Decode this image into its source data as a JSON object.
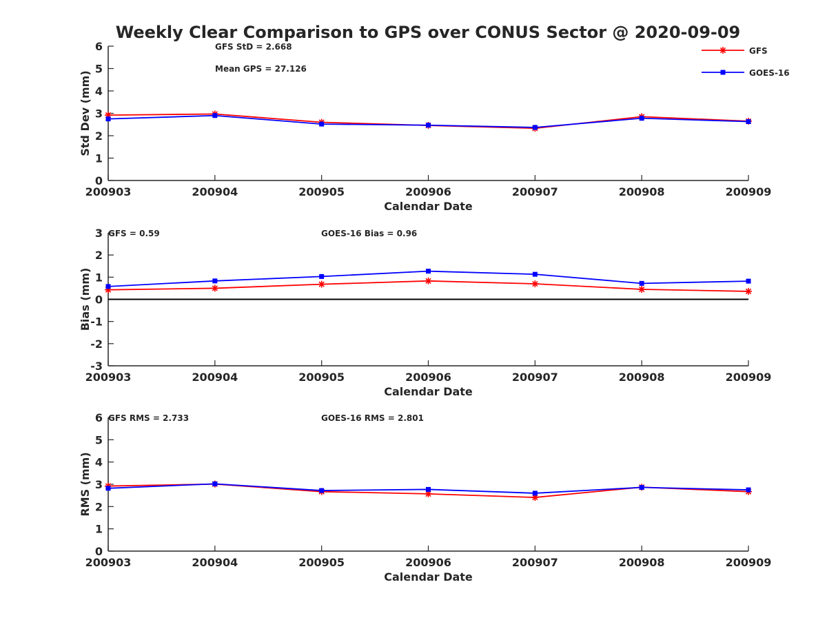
{
  "title": "Weekly Clear Comparison to GPS over CONUS Sector @ 2020-09-09",
  "legend": {
    "placement": "top-right",
    "entries": [
      {
        "name": "GFS",
        "color": "#ff0000",
        "marker": "asterisk"
      },
      {
        "name": "GOES-16",
        "color": "#0000ff",
        "marker": "square"
      }
    ]
  },
  "chart_data": [
    {
      "type": "line",
      "xlabel": "Calendar Date",
      "ylabel": "Std Dev (mm)",
      "categories": [
        "200903",
        "200904",
        "200905",
        "200906",
        "200907",
        "200908",
        "200909"
      ],
      "ylim": [
        0,
        6
      ],
      "yticks": [
        "0",
        "1",
        "2",
        "3",
        "4",
        "5",
        "6"
      ],
      "annotations": [
        "GFS StD = 2.668",
        "Mean GPS = 27.126"
      ],
      "series": [
        {
          "name": "GFS",
          "values": [
            2.92,
            2.97,
            2.6,
            2.46,
            2.33,
            2.85,
            2.65
          ]
        },
        {
          "name": "GOES-16",
          "values": [
            2.75,
            2.9,
            2.52,
            2.47,
            2.37,
            2.78,
            2.63
          ]
        }
      ]
    },
    {
      "type": "line",
      "xlabel": "Calendar Date",
      "ylabel": "Bias (mm)",
      "categories": [
        "200903",
        "200904",
        "200905",
        "200906",
        "200907",
        "200908",
        "200909"
      ],
      "ylim": [
        -3,
        3
      ],
      "yticks": [
        "-3",
        "-2",
        "-1",
        "0",
        "1",
        "2",
        "3"
      ],
      "zero_line": true,
      "annotations": [
        "GFS = 0.59",
        "GOES-16 Bias  = 0.96"
      ],
      "series": [
        {
          "name": "GFS",
          "values": [
            0.43,
            0.5,
            0.68,
            0.83,
            0.7,
            0.45,
            0.36
          ]
        },
        {
          "name": "GOES-16",
          "values": [
            0.58,
            0.83,
            1.03,
            1.27,
            1.13,
            0.72,
            0.82
          ]
        }
      ]
    },
    {
      "type": "line",
      "xlabel": "Calendar Date",
      "ylabel": "RMS (mm)",
      "categories": [
        "200903",
        "200904",
        "200905",
        "200906",
        "200907",
        "200908",
        "200909"
      ],
      "ylim": [
        0,
        6
      ],
      "yticks": [
        "0",
        "1",
        "2",
        "3",
        "4",
        "5",
        "6"
      ],
      "annotations": [
        "GFS RMS = 2.733",
        "GOES-16 RMS = 2.801"
      ],
      "series": [
        {
          "name": "GFS",
          "values": [
            2.92,
            3.01,
            2.67,
            2.57,
            2.41,
            2.87,
            2.67
          ]
        },
        {
          "name": "GOES-16",
          "values": [
            2.82,
            3.02,
            2.72,
            2.77,
            2.6,
            2.86,
            2.75
          ]
        }
      ]
    }
  ]
}
